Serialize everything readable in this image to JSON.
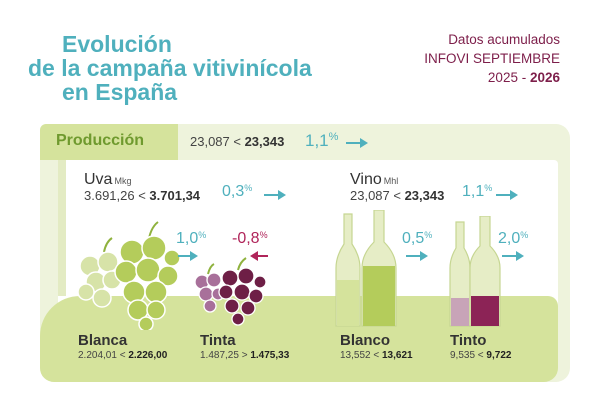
{
  "title": {
    "line1": "Evolución",
    "line2": "de la campaña vitivinícola",
    "line3": "en España"
  },
  "report": {
    "line1": "Datos acumulados",
    "line2": "INFOVI SEPTIEMBRE",
    "years_start": "2025 - ",
    "years_end": "2026"
  },
  "produccion": {
    "label": "Producción",
    "prev": "23,087 < ",
    "curr": "23,343",
    "pct": "1,1",
    "pct_sign": "%"
  },
  "uva": {
    "label": "Uva",
    "unit": "Mkg",
    "prev": "3.691,26 < ",
    "curr": "3.701,34",
    "pct": "0,3",
    "pct_sign": "%",
    "blanca": {
      "label": "Blanca",
      "prev": "2.204,01 < ",
      "curr": "2.226,00",
      "pct": "1,0",
      "pct_sign": "%"
    },
    "tinta": {
      "label": "Tinta",
      "prev": "1.487,25 > ",
      "curr": "1.475,33",
      "pct": "-0,8",
      "pct_sign": "%"
    }
  },
  "vino": {
    "label": "Vino",
    "unit": "Mhl",
    "prev": "23,087 < ",
    "curr": "23,343",
    "pct": "1,1",
    "pct_sign": "%",
    "blanco": {
      "label": "Blanco",
      "prev": "13,552 < ",
      "curr": "13,621",
      "pct": "0,5",
      "pct_sign": "%"
    },
    "tinto": {
      "label": "Tinto",
      "prev": "9,535 < ",
      "curr": "9,722",
      "pct": "2,0",
      "pct_sign": "%"
    }
  },
  "colors": {
    "title": "#4fb0bd",
    "accent_dark": "#7d1e4a",
    "increase": "#4fb0bd",
    "decrease": "#b0255a",
    "green_light": "#d5e39c",
    "green_dark": "#6f9a2e"
  },
  "icons": [
    "white-grapes-icon",
    "red-grapes-icon",
    "white-wine-bottles-icon",
    "red-wine-bottles-icon",
    "arrow-right-icon",
    "arrow-left-icon"
  ]
}
